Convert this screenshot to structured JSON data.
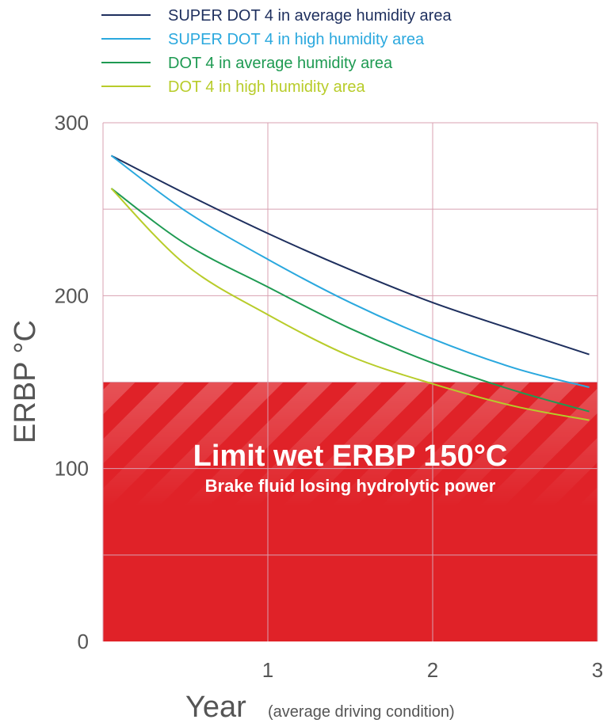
{
  "chart_data": {
    "type": "line",
    "title": "",
    "xlabel": "Year",
    "xlabel_note": "(average driving condition)",
    "ylabel": "ERBP °C",
    "xlim": [
      0,
      3
    ],
    "ylim": [
      0,
      300
    ],
    "x_ticks": [
      "1",
      "2",
      "3"
    ],
    "y_ticks": [
      "0",
      "100",
      "200",
      "300"
    ],
    "grid": true,
    "legend_position": "top",
    "x": [
      0.05,
      0.5,
      1,
      1.5,
      2,
      2.5,
      2.95
    ],
    "series": [
      {
        "name": "SUPER DOT 4 in average humidity area",
        "color": "#1e2f5e",
        "values": [
          281,
          259,
          236,
          215,
          196,
          180,
          166
        ]
      },
      {
        "name": "SUPER DOT 4 in high humidity area",
        "color": "#2aa8de",
        "values": [
          281,
          249,
          221,
          196,
          175,
          158,
          147
        ]
      },
      {
        "name": "DOT 4 in average humidity area",
        "color": "#1e9a52",
        "values": [
          262,
          230,
          205,
          181,
          161,
          145,
          133
        ]
      },
      {
        "name": "DOT 4 in high humidity area",
        "color": "#b8cc2a",
        "values": [
          262,
          218,
          189,
          165,
          149,
          136,
          128
        ]
      }
    ],
    "limit_zone": {
      "value": 150,
      "title": "Limit wet ERBP 150°C",
      "subtitle": "Brake fluid losing hydrolytic power",
      "color": "#e02228"
    },
    "grid_color": "#d8a0b0"
  }
}
